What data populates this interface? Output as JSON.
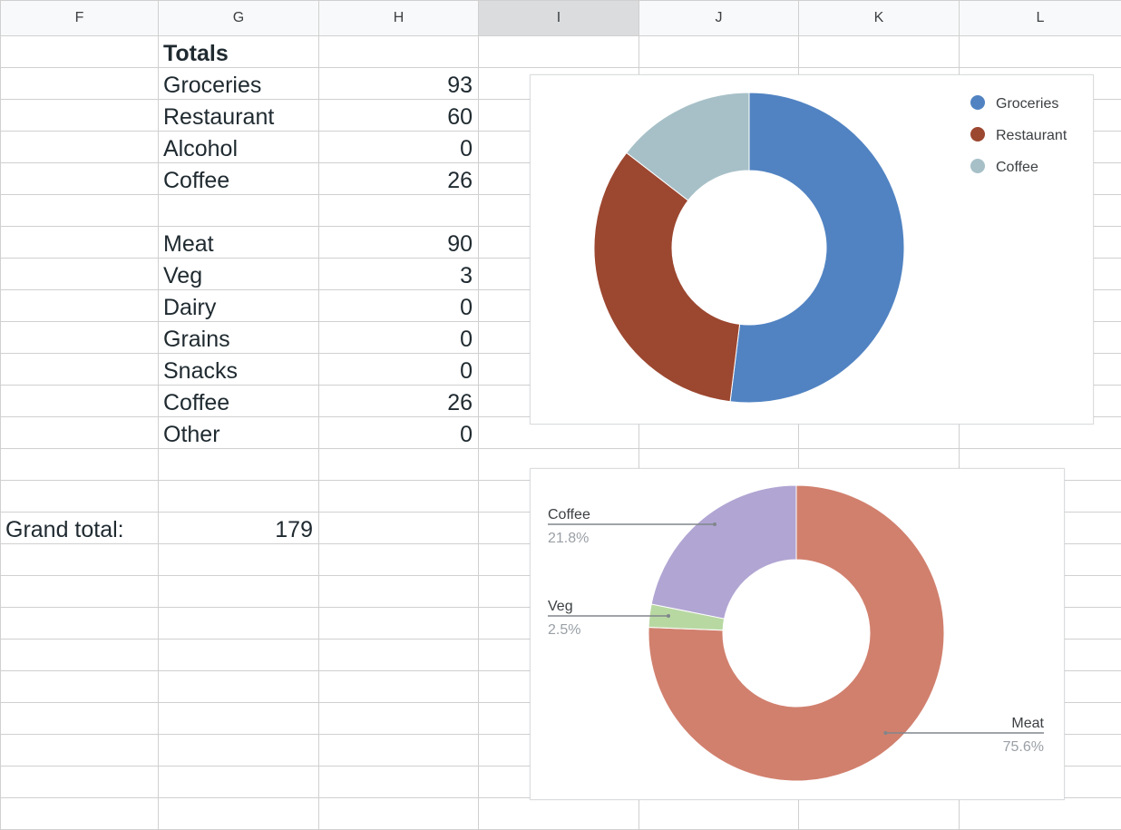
{
  "columns": [
    "F",
    "G",
    "H",
    "I",
    "J",
    "K",
    "L"
  ],
  "selected_column": "I",
  "rows": [
    {
      "f": "",
      "g": "Totals",
      "h": "",
      "g_bold": true
    },
    {
      "f": "",
      "g": "Groceries",
      "h": "93"
    },
    {
      "f": "",
      "g": "Restaurant",
      "h": "60"
    },
    {
      "f": "",
      "g": "Alcohol",
      "h": "0"
    },
    {
      "f": "",
      "g": "Coffee",
      "h": "26"
    },
    {
      "f": "",
      "g": "",
      "h": ""
    },
    {
      "f": "",
      "g": "Meat",
      "h": "90"
    },
    {
      "f": "",
      "g": "Veg",
      "h": "3"
    },
    {
      "f": "",
      "g": "Dairy",
      "h": "0"
    },
    {
      "f": "",
      "g": "Grains",
      "h": "0"
    },
    {
      "f": "",
      "g": "Snacks",
      "h": "0"
    },
    {
      "f": "",
      "g": "Coffee",
      "h": "26"
    },
    {
      "f": "",
      "g": "Other",
      "h": "0"
    },
    {
      "f": "",
      "g": "",
      "h": ""
    },
    {
      "f": "",
      "g": "",
      "h": ""
    },
    {
      "f": "Grand total:",
      "g": "179",
      "h": "",
      "g_num": true
    },
    {
      "f": "",
      "g": "",
      "h": ""
    },
    {
      "f": "",
      "g": "",
      "h": ""
    },
    {
      "f": "",
      "g": "",
      "h": ""
    },
    {
      "f": "",
      "g": "",
      "h": ""
    },
    {
      "f": "",
      "g": "",
      "h": ""
    },
    {
      "f": "",
      "g": "",
      "h": ""
    },
    {
      "f": "",
      "g": "",
      "h": ""
    },
    {
      "f": "",
      "g": "",
      "h": ""
    },
    {
      "f": "",
      "g": "",
      "h": ""
    }
  ],
  "chart_data": [
    {
      "type": "pie",
      "donut": true,
      "legend_position": "top-right",
      "labels": [
        "Groceries",
        "Restaurant",
        "Coffee"
      ],
      "values": [
        93,
        60,
        26
      ],
      "colors": [
        "#5183c2",
        "#9c4730",
        "#a7c0c8"
      ]
    },
    {
      "type": "pie",
      "donut": true,
      "legend_position": "labeled slices",
      "labels": [
        "Meat",
        "Veg",
        "Coffee"
      ],
      "values": [
        90,
        3,
        26
      ],
      "percent_labels": [
        "75.6%",
        "2.5%",
        "21.8%"
      ],
      "colors": [
        "#d1806e",
        "#b8d8a2",
        "#b1a5d3"
      ]
    }
  ]
}
